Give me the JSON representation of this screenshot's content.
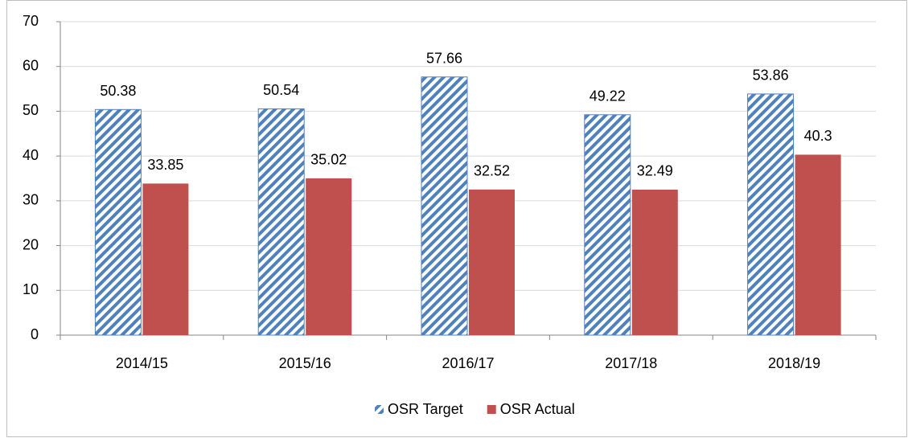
{
  "chart_data": {
    "type": "bar",
    "categories": [
      "2014/15",
      "2015/16",
      "2016/17",
      "2017/18",
      "2018/19"
    ],
    "series": [
      {
        "name": "OSR Target",
        "color": "#4f81bd",
        "values": [
          50.38,
          50.54,
          57.66,
          49.22,
          53.86
        ]
      },
      {
        "name": "OSR Actual",
        "color": "#c0504d",
        "values": [
          33.85,
          35.02,
          32.52,
          32.49,
          40.3
        ]
      }
    ],
    "ylim": [
      0,
      70
    ],
    "yticks": [
      0,
      10,
      20,
      30,
      40,
      50,
      60,
      70
    ],
    "grid": true,
    "legend": "bottom"
  }
}
